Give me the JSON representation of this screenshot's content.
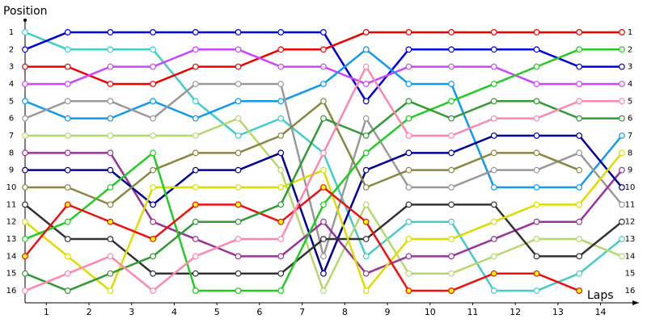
{
  "chart_data": {
    "type": "line",
    "y_label": "Position",
    "x_label": "Laps",
    "y_inverted": true,
    "x": [
      0,
      1,
      2,
      3,
      4,
      5,
      6,
      7,
      8,
      9,
      10,
      11,
      12,
      13,
      14
    ],
    "xlim": [
      0,
      14.4
    ],
    "xticks": [
      {
        "value": 0.5,
        "label": "1"
      },
      {
        "value": 1.5,
        "label": "2"
      },
      {
        "value": 2.5,
        "label": "3"
      },
      {
        "value": 3.5,
        "label": "4"
      },
      {
        "value": 4.5,
        "label": "5"
      },
      {
        "value": 5.5,
        "label": "6"
      },
      {
        "value": 6.5,
        "label": "7"
      },
      {
        "value": 7.5,
        "label": "8"
      },
      {
        "value": 8.5,
        "label": "9"
      },
      {
        "value": 9.5,
        "label": "10"
      },
      {
        "value": 10.5,
        "label": "11"
      },
      {
        "value": 11.5,
        "label": "12"
      },
      {
        "value": 12.5,
        "label": "13"
      },
      {
        "value": 13.5,
        "label": "14"
      }
    ],
    "ylim": [
      0.3,
      16.7
    ],
    "yticks": [
      1,
      2,
      3,
      4,
      5,
      6,
      7,
      8,
      9,
      10,
      11,
      12,
      13,
      14,
      15,
      16
    ],
    "series": [
      {
        "color": "#44cccc",
        "marker_fill": "#ffffff",
        "values": [
          1,
          2,
          2,
          2,
          5,
          7,
          6,
          8,
          14,
          12,
          12,
          16,
          16,
          15,
          13
        ]
      },
      {
        "color": "#0000dd",
        "marker_fill": "#ffffff",
        "values": [
          2,
          1,
          1,
          1,
          1,
          1,
          1,
          1,
          5,
          2,
          2,
          2,
          2,
          3,
          3
        ]
      },
      {
        "color": "#ee0000",
        "marker_fill": "#ffffff",
        "values": [
          3,
          3,
          4,
          4,
          3,
          3,
          2,
          2,
          1,
          1,
          1,
          1,
          1,
          1,
          1
        ]
      },
      {
        "color": "#cc44ff",
        "marker_fill": "#ffffff",
        "values": [
          4,
          4,
          3,
          3,
          2,
          2,
          3,
          3,
          4,
          3,
          3,
          3,
          4,
          4,
          4
        ]
      },
      {
        "color": "#1199ee",
        "marker_fill": "#ffffff",
        "values": [
          5,
          6,
          6,
          5,
          6,
          5,
          5,
          4,
          2,
          4,
          4,
          10,
          10,
          10,
          7
        ]
      },
      {
        "color": "#999999",
        "marker_fill": "#ffffff",
        "values": [
          6,
          5,
          5,
          6,
          4,
          4,
          4,
          14,
          6,
          10,
          10,
          9,
          9,
          8,
          11
        ]
      },
      {
        "color": "#b4d86c",
        "marker_fill": "#ffffff",
        "values": [
          7,
          7,
          7,
          7,
          7,
          6,
          9,
          16,
          11,
          15,
          15,
          14,
          13,
          13,
          14
        ]
      },
      {
        "color": "#993399",
        "marker_fill": "#ffffff",
        "values": [
          8,
          8,
          8,
          12,
          13,
          14,
          14,
          12,
          15,
          14,
          14,
          13,
          12,
          12,
          9
        ]
      },
      {
        "color": "#000099",
        "marker_fill": "#ffffff",
        "values": [
          9,
          9,
          9,
          11,
          9,
          9,
          8,
          15,
          9,
          8,
          8,
          7,
          7,
          7,
          10
        ]
      },
      {
        "color": "#888844",
        "marker_fill": "#ffffff",
        "values": [
          10,
          10,
          11,
          9,
          8,
          8,
          7,
          5,
          10,
          9,
          9,
          8,
          8,
          9,
          null
        ]
      },
      {
        "color": "#333333",
        "marker_fill": "#ffffff",
        "values": [
          11,
          13,
          13,
          15,
          15,
          15,
          15,
          13,
          13,
          11,
          11,
          11,
          14,
          14,
          12
        ]
      },
      {
        "color": "#dddd00",
        "marker_fill": "#ffffff",
        "values": [
          12,
          14,
          16,
          10,
          10,
          10,
          10,
          9,
          16,
          13,
          13,
          12,
          11,
          11,
          8
        ]
      },
      {
        "color": "#22cc22",
        "marker_fill": "#ffffff",
        "values": [
          13,
          12,
          10,
          8,
          16,
          16,
          16,
          11,
          8,
          6,
          5,
          4,
          3,
          2,
          2
        ]
      },
      {
        "color": "#ee1111",
        "marker_fill": "#ffff00",
        "values": [
          14,
          11,
          12,
          13,
          11,
          11,
          12,
          10,
          12,
          16,
          16,
          15,
          15,
          16,
          null
        ]
      },
      {
        "color": "#339933",
        "marker_fill": "#ffffff",
        "values": [
          15,
          16,
          15,
          14,
          12,
          12,
          11,
          6,
          7,
          5,
          6,
          5,
          5,
          6,
          6
        ]
      },
      {
        "color": "#ff88aa",
        "marker_fill": "#ffffff",
        "values": [
          16,
          15,
          14,
          16,
          14,
          13,
          13,
          8,
          3,
          7,
          7,
          6,
          6,
          5,
          5
        ]
      }
    ]
  }
}
